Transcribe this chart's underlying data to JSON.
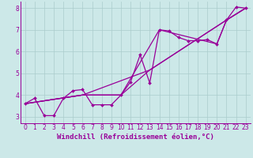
{
  "background_color": "#cce8e8",
  "line_color": "#990099",
  "grid_color": "#aacccc",
  "xlabel": "Windchill (Refroidissement éolien,°C)",
  "xlim": [
    -0.5,
    23.5
  ],
  "ylim": [
    2.7,
    8.3
  ],
  "xticks": [
    0,
    1,
    2,
    3,
    4,
    5,
    6,
    7,
    8,
    9,
    10,
    11,
    12,
    13,
    14,
    15,
    16,
    17,
    18,
    19,
    20,
    21,
    22,
    23
  ],
  "yticks": [
    3,
    4,
    5,
    6,
    7,
    8
  ],
  "series1_x": [
    0,
    1,
    2,
    3,
    4,
    5,
    6,
    7,
    8,
    9,
    10,
    11,
    12,
    13,
    14,
    15,
    16,
    17,
    18,
    19,
    20,
    21,
    22,
    23
  ],
  "series1_y": [
    3.6,
    3.85,
    3.05,
    3.05,
    3.85,
    4.2,
    4.25,
    3.55,
    3.55,
    3.55,
    4.0,
    4.6,
    5.85,
    4.55,
    7.0,
    6.95,
    6.65,
    6.5,
    6.5,
    6.55,
    6.35,
    7.45,
    8.05,
    8.0
  ],
  "series2_x": [
    0,
    6,
    13,
    21,
    23
  ],
  "series2_y": [
    3.6,
    4.0,
    5.15,
    7.45,
    8.0
  ],
  "series3_x": [
    0,
    6,
    10,
    13,
    21,
    23
  ],
  "series3_y": [
    3.6,
    4.0,
    4.0,
    5.15,
    7.45,
    8.0
  ],
  "series4_x": [
    0,
    6,
    10,
    14,
    20,
    21,
    23
  ],
  "series4_y": [
    3.6,
    4.0,
    4.0,
    7.0,
    6.35,
    7.45,
    8.0
  ],
  "marker_size": 2.0,
  "line_width": 0.9,
  "xlabel_fontsize": 6.5,
  "tick_fontsize": 5.5
}
